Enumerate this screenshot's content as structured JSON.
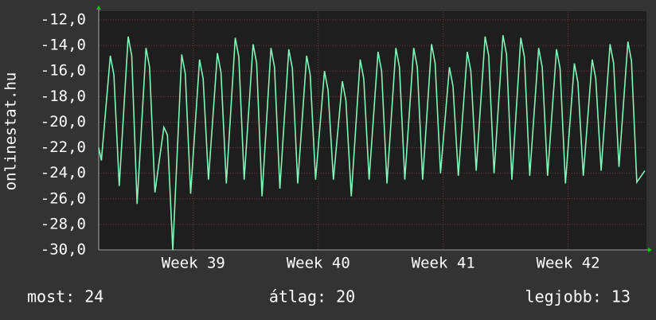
{
  "chart_data": {
    "type": "line",
    "y_label": "onlinestat.hu",
    "x": [
      0,
      0.15,
      0.65,
      0.85,
      1.15,
      1.65,
      1.85,
      2.15,
      2.65,
      2.85,
      3.15,
      3.65,
      3.85,
      4.15,
      4.65,
      4.85,
      5.15,
      5.65,
      5.85,
      6.15,
      6.65,
      6.85,
      7.15,
      7.65,
      7.85,
      8.15,
      8.65,
      8.85,
      9.15,
      9.65,
      9.85,
      10.15,
      10.65,
      10.85,
      11.15,
      11.65,
      11.85,
      12.15,
      12.65,
      12.85,
      13.15,
      13.65,
      13.85,
      14.15,
      14.65,
      14.85,
      15.15,
      15.65,
      15.85,
      16.15,
      16.65,
      16.85,
      17.15,
      17.65,
      17.85,
      18.15,
      18.65,
      18.85,
      19.15,
      19.65,
      19.85,
      20.15,
      20.65,
      20.85,
      21.15,
      21.65,
      21.85,
      22.15,
      22.65,
      22.85,
      23.15,
      23.65,
      23.85,
      24.15,
      24.65,
      24.85,
      25.15,
      25.65,
      25.85,
      26.15,
      26.65,
      26.85,
      27.15,
      27.65,
      27.85,
      28.15,
      28.65,
      28.85,
      29.15,
      29.65,
      29.85,
      30.15,
      30.6
    ],
    "series": [
      {
        "name": "onlinestat",
        "color": "#80f5b8",
        "values": [
          -22,
          -23,
          -14.8,
          -16.3,
          -25,
          -13.3,
          -14.8,
          -26.4,
          -14.2,
          -15.7,
          -25.5,
          -20.4,
          -21.0,
          -30,
          -14.7,
          -16.2,
          -25.6,
          -15.1,
          -16.6,
          -24.5,
          -14.6,
          -16.1,
          -24.8,
          -13.4,
          -14.9,
          -24.5,
          -13.9,
          -15.4,
          -25.8,
          -14.2,
          -15.7,
          -25.2,
          -14.3,
          -15.8,
          -24.8,
          -14.8,
          -16.3,
          -24.5,
          -16,
          -17.5,
          -24.5,
          -16.8,
          -18.3,
          -25.8,
          -15.1,
          -16.6,
          -24.5,
          -14.5,
          -16.0,
          -24.8,
          -14.2,
          -15.7,
          -24.5,
          -14.2,
          -15.7,
          -24.5,
          -13.9,
          -15.4,
          -24,
          -15.7,
          -17.2,
          -24.2,
          -14.5,
          -16.0,
          -23.8,
          -13.3,
          -14.8,
          -24,
          -13.2,
          -14.7,
          -24.5,
          -13.4,
          -14.9,
          -24.2,
          -14.2,
          -15.7,
          -24.2,
          -14.3,
          -15.8,
          -24.8,
          -15.4,
          -16.9,
          -24.2,
          -15.1,
          -16.6,
          -23.8,
          -13.9,
          -15.4,
          -23.5,
          -13.7,
          -15.2,
          -24.7,
          -23.8
        ]
      }
    ],
    "xlim": [
      0,
      30.6
    ],
    "xticks": [
      {
        "value": 5.3,
        "label": "Week 39"
      },
      {
        "value": 12.3,
        "label": "Week 40"
      },
      {
        "value": 19.3,
        "label": "Week 41"
      },
      {
        "value": 26.3,
        "label": "Week 42"
      }
    ],
    "ylim": [
      -30,
      -12
    ],
    "yticks": [
      {
        "value": -30,
        "label": "-30,0"
      },
      {
        "value": -28,
        "label": "-28,0"
      },
      {
        "value": -26,
        "label": "-26,0"
      },
      {
        "value": -24,
        "label": "-24,0"
      },
      {
        "value": -22,
        "label": "-22,0"
      },
      {
        "value": -20,
        "label": "-20,0"
      },
      {
        "value": -18,
        "label": "-18,0"
      },
      {
        "value": -16,
        "label": "-16,0"
      },
      {
        "value": -14,
        "label": "-14,0"
      },
      {
        "value": -12,
        "label": "-12,0"
      }
    ],
    "grid": true,
    "footer": {
      "current": "most: 24",
      "average": "átlag: 20",
      "best": "legjobb: 13"
    }
  }
}
